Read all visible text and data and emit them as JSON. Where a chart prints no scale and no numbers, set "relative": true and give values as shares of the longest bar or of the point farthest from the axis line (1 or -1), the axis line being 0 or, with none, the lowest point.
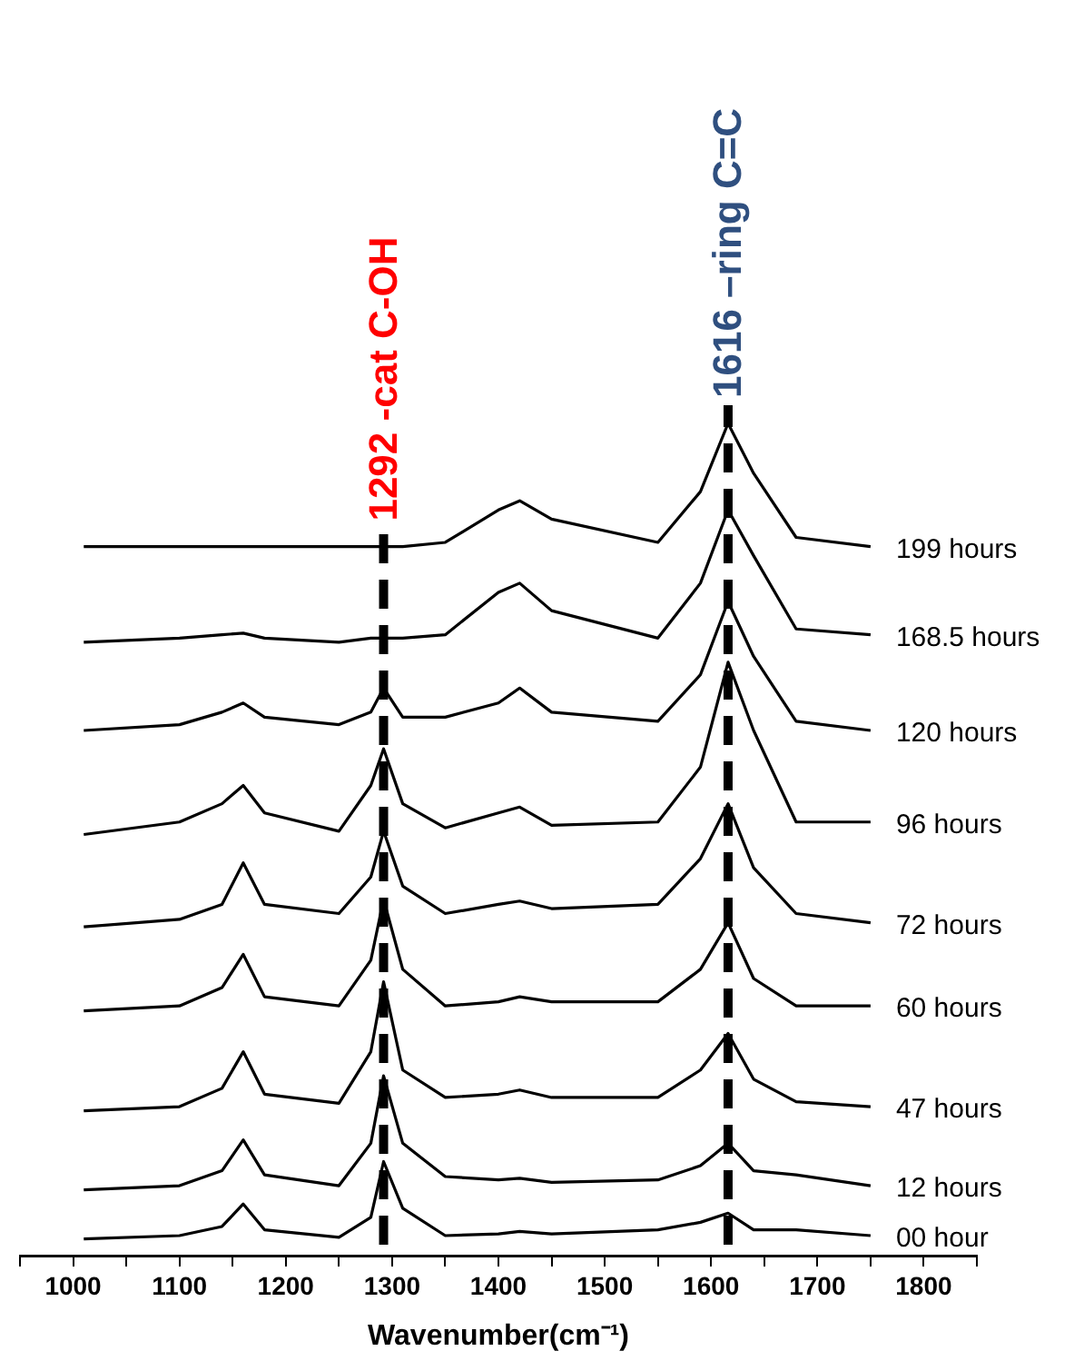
{
  "chart_data": {
    "type": "line",
    "relative": true,
    "xlabel": "Wavenumber(cm⁻¹)",
    "x": [
      1010,
      1100,
      1140,
      1160,
      1180,
      1250,
      1280,
      1292,
      1310,
      1350,
      1400,
      1420,
      1450,
      1550,
      1590,
      1616,
      1640,
      1680,
      1750
    ],
    "xlim": [
      950,
      1850
    ],
    "xticks": [
      {
        "value": 950,
        "label": null
      },
      1000,
      {
        "value": 1050,
        "label": null
      },
      1100,
      {
        "value": 1150,
        "label": null
      },
      1200,
      {
        "value": 1250,
        "label": null
      },
      1300,
      {
        "value": 1350,
        "label": null
      },
      1400,
      {
        "value": 1450,
        "label": null
      },
      1500,
      {
        "value": 1550,
        "label": null
      },
      1600,
      {
        "value": 1650,
        "label": null
      },
      1700,
      {
        "value": 1750,
        "label": null
      },
      1800,
      {
        "value": 1850,
        "label": null
      }
    ],
    "series": [
      {
        "name": "00 hour",
        "color": "#000000",
        "values": [
          0.02,
          0.024,
          0.035,
          0.062,
          0.031,
          0.022,
          0.046,
          0.113,
          0.057,
          0.024,
          0.026,
          0.029,
          0.026,
          0.031,
          0.04,
          0.051,
          0.031,
          0.031,
          0.024
        ]
      },
      {
        "name": "12 hours",
        "color": "#000000",
        "values": [
          0.079,
          0.084,
          0.102,
          0.139,
          0.097,
          0.084,
          0.135,
          0.216,
          0.135,
          0.095,
          0.091,
          0.093,
          0.088,
          0.091,
          0.108,
          0.135,
          0.102,
          0.097,
          0.084
        ]
      },
      {
        "name": "47 hours",
        "color": "#000000",
        "values": [
          0.174,
          0.179,
          0.201,
          0.245,
          0.194,
          0.183,
          0.245,
          0.329,
          0.223,
          0.19,
          0.194,
          0.199,
          0.19,
          0.19,
          0.223,
          0.267,
          0.212,
          0.185,
          0.179
        ]
      },
      {
        "name": "60 hours",
        "color": "#000000",
        "values": [
          0.294,
          0.3,
          0.322,
          0.362,
          0.311,
          0.3,
          0.355,
          0.428,
          0.344,
          0.3,
          0.305,
          0.311,
          0.305,
          0.305,
          0.344,
          0.4,
          0.333,
          0.3,
          0.3
        ]
      },
      {
        "name": "72 hours",
        "color": "#000000",
        "values": [
          0.395,
          0.404,
          0.422,
          0.472,
          0.422,
          0.411,
          0.455,
          0.51,
          0.444,
          0.411,
          0.422,
          0.426,
          0.417,
          0.422,
          0.477,
          0.543,
          0.466,
          0.411,
          0.4
        ]
      },
      {
        "name": "96 hours",
        "color": "#000000",
        "values": [
          0.506,
          0.521,
          0.543,
          0.565,
          0.532,
          0.51,
          0.565,
          0.609,
          0.543,
          0.514,
          0.532,
          0.539,
          0.517,
          0.521,
          0.587,
          0.713,
          0.631,
          0.521,
          0.521
        ]
      },
      {
        "name": "120 hours",
        "color": "#000000",
        "values": [
          0.631,
          0.638,
          0.653,
          0.664,
          0.647,
          0.638,
          0.653,
          0.682,
          0.647,
          0.647,
          0.664,
          0.682,
          0.653,
          0.642,
          0.698,
          0.786,
          0.72,
          0.642,
          0.631
        ]
      },
      {
        "name": "168.5 hours",
        "color": "#000000",
        "values": [
          0.737,
          0.742,
          0.746,
          0.748,
          0.742,
          0.737,
          0.742,
          0.742,
          0.742,
          0.746,
          0.797,
          0.808,
          0.775,
          0.742,
          0.808,
          0.896,
          0.841,
          0.753,
          0.746
        ]
      },
      {
        "name": "199 hours",
        "color": "#000000",
        "values": [
          0.852,
          0.852,
          0.852,
          0.852,
          0.852,
          0.852,
          0.852,
          0.852,
          0.852,
          0.857,
          0.896,
          0.907,
          0.885,
          0.857,
          0.918,
          1,
          0.94,
          0.863,
          0.852
        ]
      }
    ],
    "ref_lines": [
      {
        "axis": "x",
        "value": 1292,
        "label": "1292 -cat C-OH",
        "color": "#000000",
        "line_style": "dashed"
      },
      {
        "axis": "x",
        "value": 1616,
        "label": "1616 –ring C=C",
        "color": "#000000",
        "line_style": "dashed"
      }
    ]
  }
}
